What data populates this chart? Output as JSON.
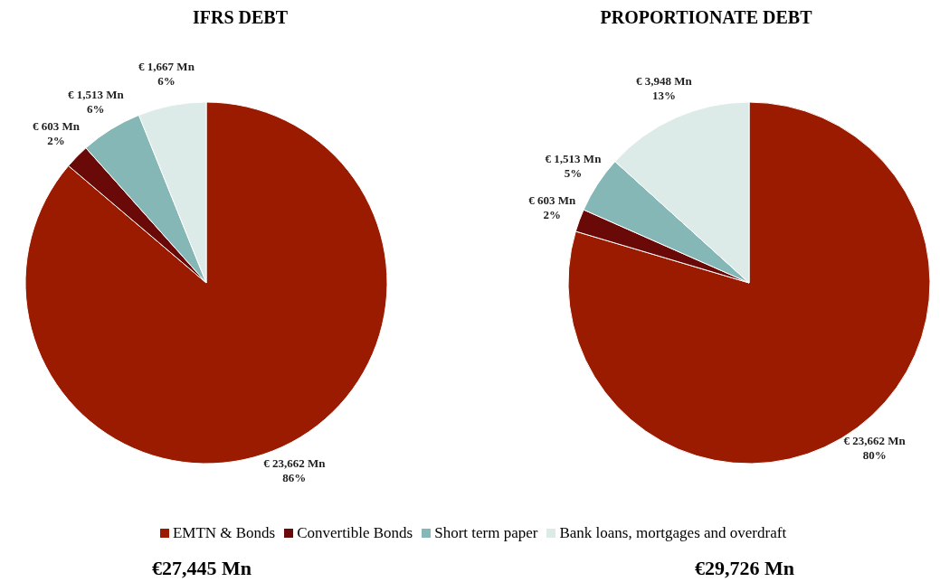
{
  "chart_data": [
    {
      "type": "pie",
      "title": "IFRS DEBT",
      "categories": [
        "EMTN & Bonds",
        "Convertible Bonds",
        "Short term paper",
        "Bank loans, mortgages and overdraft"
      ],
      "values": [
        23662,
        603,
        1513,
        1667
      ],
      "colors": [
        "#9a1b00",
        "#6a0a08",
        "#84b7b5",
        "#dcebe8"
      ],
      "value_labels": [
        "€ 23,662 Mn\n86%",
        "€ 603 Mn\n2%",
        "€ 1,513 Mn\n6%",
        "€ 1,667 Mn\n6%"
      ],
      "legend": "bottom",
      "annotations": [
        "€27,445 Mn"
      ]
    },
    {
      "type": "pie",
      "title": "PROPORTIONATE DEBT",
      "categories": [
        null,
        null,
        null,
        null
      ],
      "values": [
        23662,
        603,
        1513,
        3948
      ],
      "colors": [
        "#9a1b00",
        "#6a0a08",
        "#84b7b5",
        "#dcebe8"
      ],
      "value_labels": [
        "€ 23,662 Mn\n80%",
        "€ 603 Mn\n2%",
        "€ 1,513 Mn\n5%",
        "€ 3,948 Mn\n13%"
      ],
      "annotations": [
        "€29,726 Mn"
      ]
    }
  ]
}
